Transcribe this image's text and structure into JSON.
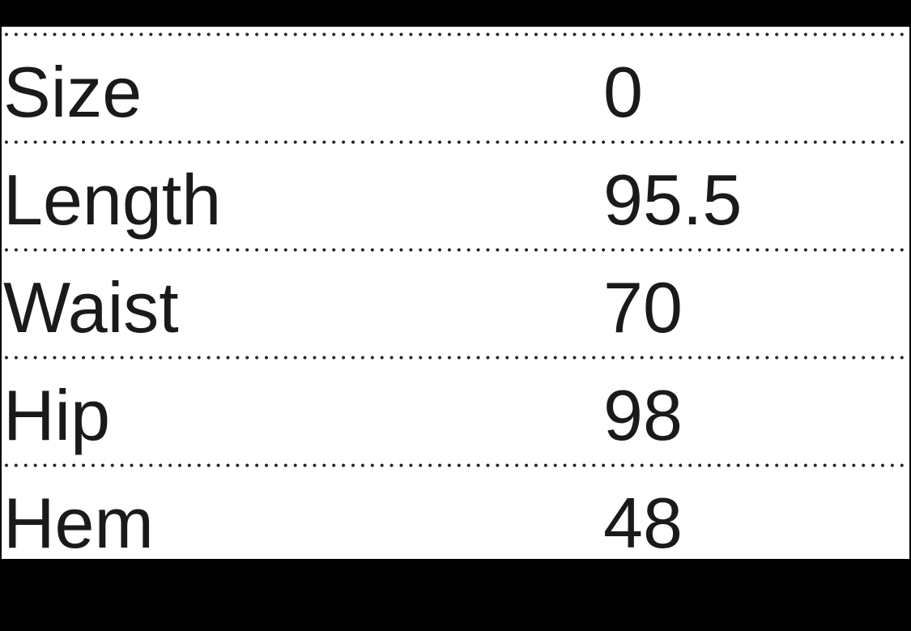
{
  "table": {
    "rows": [
      {
        "label": "Size",
        "value": "0"
      },
      {
        "label": "Length",
        "value": "95.5"
      },
      {
        "label": "Waist",
        "value": "70"
      },
      {
        "label": "Hip",
        "value": "98"
      },
      {
        "label": "Hem",
        "value": "48"
      }
    ]
  }
}
